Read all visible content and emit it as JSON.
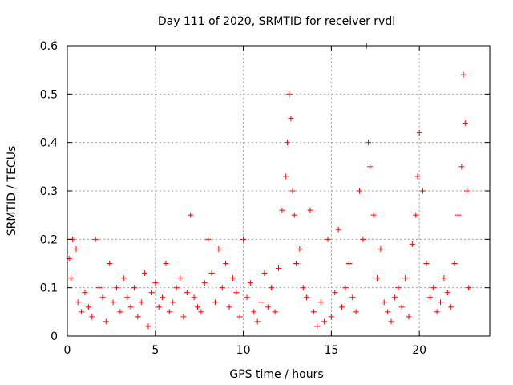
{
  "chart_data": {
    "type": "scatter",
    "title": "Day 111 of 2020, SRMTID for receiver rvdi",
    "xlabel": "GPS time / hours",
    "ylabel": "SRMTID / TECUs",
    "xlim": [
      0,
      24
    ],
    "ylim": [
      0,
      0.6
    ],
    "xticks": [
      "0",
      "5",
      "10",
      "15",
      "20"
    ],
    "yticks": [
      "0",
      "0.1",
      "0.2",
      "0.3",
      "0.4",
      "0.5",
      "0.6"
    ],
    "grid": true,
    "marker": "+",
    "color": "#ff0000",
    "series": [
      {
        "name": "SRMTID",
        "x": [
          0.1,
          0.2,
          0.3,
          0.5,
          0.6,
          0.8,
          1.0,
          1.2,
          1.4,
          1.6,
          1.8,
          2.0,
          2.2,
          2.4,
          2.6,
          2.8,
          3.0,
          3.2,
          3.4,
          3.6,
          3.8,
          4.0,
          4.2,
          4.4,
          4.6,
          4.8,
          5.0,
          5.2,
          5.4,
          5.6,
          5.8,
          6.0,
          6.2,
          6.4,
          6.6,
          6.8,
          7.0,
          7.2,
          7.4,
          7.6,
          7.8,
          8.0,
          8.2,
          8.4,
          8.6,
          8.8,
          9.0,
          9.2,
          9.4,
          9.6,
          9.8,
          10.0,
          10.2,
          10.4,
          10.6,
          10.8,
          11.0,
          11.2,
          11.4,
          11.6,
          11.8,
          12.0,
          12.2,
          12.4,
          12.5,
          12.6,
          12.7,
          12.8,
          12.9,
          13.0,
          13.2,
          13.4,
          13.6,
          13.8,
          14.0,
          14.2,
          14.4,
          14.6,
          14.8,
          15.0,
          15.2,
          15.4,
          15.6,
          15.8,
          16.0,
          16.2,
          16.4,
          16.6,
          16.8,
          17.0,
          17.1,
          17.2,
          17.4,
          17.6,
          17.8,
          18.0,
          18.2,
          18.4,
          18.6,
          18.8,
          19.0,
          19.2,
          19.4,
          19.6,
          19.8,
          19.9,
          20.0,
          20.2,
          20.4,
          20.6,
          20.8,
          21.0,
          21.2,
          21.4,
          21.6,
          21.8,
          22.0,
          22.2,
          22.4,
          22.5,
          22.6,
          22.7,
          22.8
        ],
        "y": [
          0.16,
          0.12,
          0.2,
          0.18,
          0.07,
          0.05,
          0.09,
          0.06,
          0.04,
          0.2,
          0.1,
          0.08,
          0.03,
          0.15,
          0.07,
          0.1,
          0.05,
          0.12,
          0.08,
          0.06,
          0.1,
          0.04,
          0.07,
          0.13,
          0.02,
          0.09,
          0.11,
          0.06,
          0.08,
          0.15,
          0.05,
          0.07,
          0.1,
          0.12,
          0.04,
          0.09,
          0.25,
          0.08,
          0.06,
          0.05,
          0.11,
          0.2,
          0.13,
          0.07,
          0.18,
          0.1,
          0.15,
          0.06,
          0.12,
          0.09,
          0.04,
          0.2,
          0.08,
          0.11,
          0.05,
          0.03,
          0.07,
          0.13,
          0.06,
          0.1,
          0.05,
          0.14,
          0.26,
          0.33,
          0.4,
          0.5,
          0.45,
          0.3,
          0.25,
          0.15,
          0.18,
          0.1,
          0.08,
          0.26,
          0.05,
          0.02,
          0.07,
          0.03,
          0.2,
          0.04,
          0.09,
          0.22,
          0.06,
          0.1,
          0.15,
          0.08,
          0.05,
          0.3,
          0.2,
          0.6,
          0.4,
          0.35,
          0.25,
          0.12,
          0.18,
          0.07,
          0.05,
          0.03,
          0.08,
          0.1,
          0.06,
          0.12,
          0.04,
          0.19,
          0.25,
          0.33,
          0.42,
          0.3,
          0.15,
          0.08,
          0.1,
          0.05,
          0.07,
          0.12,
          0.09,
          0.06,
          0.15,
          0.25,
          0.35,
          0.54,
          0.44,
          0.3,
          0.1
        ]
      }
    ]
  }
}
